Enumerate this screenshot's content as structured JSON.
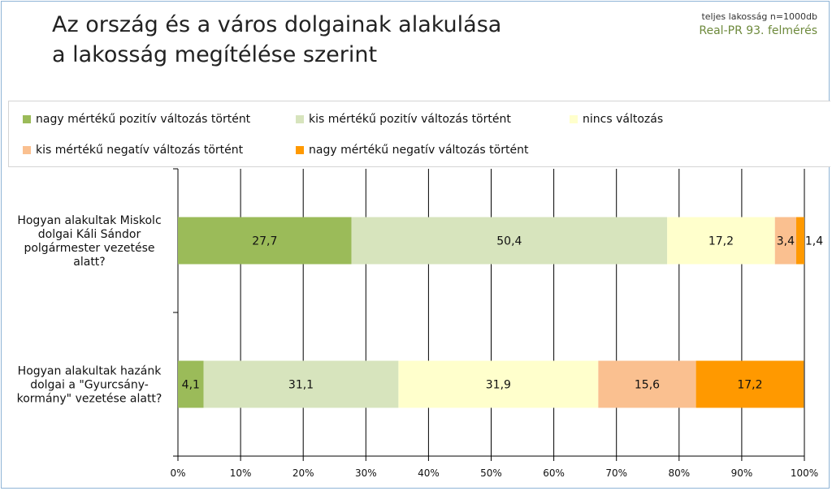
{
  "title_lines": [
    "Az ország és a város dolgainak alakulása",
    "a lakosság megítélése szerint"
  ],
  "note": {
    "population": "teljes lakosság n=1000db",
    "survey": "Real-PR 93. felmérés"
  },
  "colors": {
    "accent_text": "#6e8a3c",
    "frame": "#8fb4d6"
  },
  "chart_data": {
    "type": "bar",
    "orientation": "horizontal",
    "stacked": "percent",
    "categories": [
      "Hogyan alakultak Miskolc dolgai Káli Sándor polgármester vezetése alatt?",
      "Hogyan alakultak hazánk dolgai a \"Gyurcsány-kormány\" vezetése alatt?"
    ],
    "category_lines": [
      [
        "Hogyan alakultak Miskolc",
        "dolgai Káli Sándor",
        "polgármester vezetése",
        "alatt?"
      ],
      [
        "Hogyan alakultak hazánk",
        "dolgai a \"Gyurcsány-",
        "kormány\" vezetése alatt?"
      ]
    ],
    "series": [
      {
        "name": "nagy mértékű pozitív változás történt",
        "color": "#9bbb59",
        "values": [
          27.7,
          4.1
        ],
        "labels": [
          "27,7",
          "4,1"
        ]
      },
      {
        "name": "kis mértékű pozitív változás történt",
        "color": "#d7e4bd",
        "values": [
          50.4,
          31.1
        ],
        "labels": [
          "50,4",
          "31,1"
        ]
      },
      {
        "name": "nincs változás",
        "color": "#ffffcc",
        "values": [
          17.2,
          31.9
        ],
        "labels": [
          "17,2",
          "31,9"
        ]
      },
      {
        "name": "kis mértékű negatív változás történt",
        "color": "#fac090",
        "values": [
          3.4,
          15.6
        ],
        "labels": [
          "3,4",
          "15,6"
        ]
      },
      {
        "name": "nagy mértékű negatív változás történt",
        "color": "#ff9900",
        "values": [
          1.4,
          17.2
        ],
        "labels": [
          "1,4",
          "17,2"
        ]
      }
    ],
    "xlim": [
      0,
      100
    ],
    "xticks": [
      "0%",
      "10%",
      "20%",
      "30%",
      "40%",
      "50%",
      "60%",
      "70%",
      "80%",
      "90%",
      "100%"
    ],
    "grid": true,
    "legend_position": "top"
  }
}
